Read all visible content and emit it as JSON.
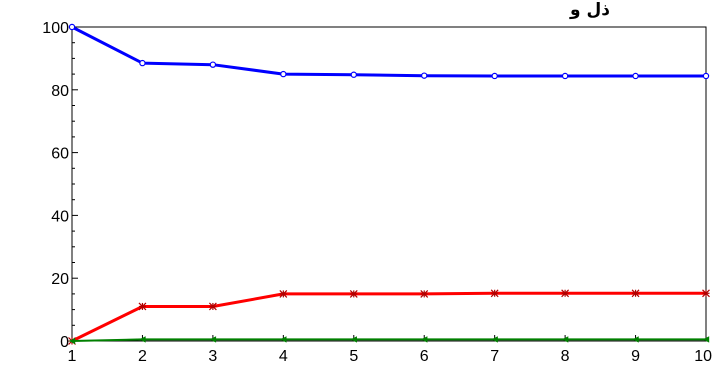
{
  "title_fragment": "ذل و",
  "chart_data": {
    "type": "line",
    "title": "",
    "xlabel": "",
    "ylabel": "",
    "x": [
      1,
      2,
      3,
      4,
      5,
      6,
      7,
      8,
      9,
      10
    ],
    "xlim": [
      1,
      10
    ],
    "ylim": [
      0,
      100
    ],
    "x_ticks": [
      "1",
      "2",
      "3",
      "4",
      "5",
      "6",
      "7",
      "8",
      "9",
      "10"
    ],
    "y_ticks": [
      "0",
      "20",
      "40",
      "60",
      "80",
      "100"
    ],
    "grid": false,
    "series": [
      {
        "color": "#0000ff",
        "marker": "circle",
        "values": [
          100,
          88.5,
          88,
          85,
          84.8,
          84.5,
          84.4,
          84.4,
          84.4,
          84.4
        ]
      },
      {
        "color": "#ff0000",
        "marker": "star",
        "values": [
          0,
          11,
          11,
          15,
          15,
          15,
          15.2,
          15.2,
          15.2,
          15.2
        ]
      },
      {
        "color": "#008000",
        "marker": "triangle",
        "values": [
          0,
          0.5,
          0.5,
          0.5,
          0.5,
          0.5,
          0.5,
          0.5,
          0.5,
          0.5
        ]
      }
    ]
  }
}
